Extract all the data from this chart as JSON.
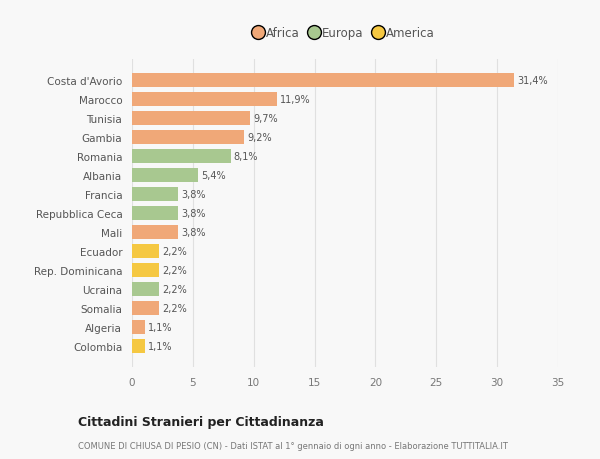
{
  "categories": [
    "Colombia",
    "Algeria",
    "Somalia",
    "Ucraina",
    "Rep. Dominicana",
    "Ecuador",
    "Mali",
    "Repubblica Ceca",
    "Francia",
    "Albania",
    "Romania",
    "Gambia",
    "Tunisia",
    "Marocco",
    "Costa d'Avorio"
  ],
  "values": [
    1.1,
    1.1,
    2.2,
    2.2,
    2.2,
    2.2,
    3.8,
    3.8,
    3.8,
    5.4,
    8.1,
    9.2,
    9.7,
    11.9,
    31.4
  ],
  "labels": [
    "1,1%",
    "1,1%",
    "2,2%",
    "2,2%",
    "2,2%",
    "2,2%",
    "3,8%",
    "3,8%",
    "3,8%",
    "5,4%",
    "8,1%",
    "9,2%",
    "9,7%",
    "11,9%",
    "31,4%"
  ],
  "colors": [
    "#f5c842",
    "#f0a878",
    "#f0a878",
    "#a8c890",
    "#f5c842",
    "#f5c842",
    "#f0a878",
    "#a8c890",
    "#a8c890",
    "#a8c890",
    "#a8c890",
    "#f0a878",
    "#f0a878",
    "#f0a878",
    "#f0a878"
  ],
  "legend_labels": [
    "Africa",
    "Europa",
    "America"
  ],
  "legend_colors": [
    "#f0a878",
    "#a8c890",
    "#f5c842"
  ],
  "title": "Cittadini Stranieri per Cittadinanza",
  "subtitle": "COMUNE DI CHIUSA DI PESIO (CN) - Dati ISTAT al 1° gennaio di ogni anno - Elaborazione TUTTITALIA.IT",
  "xlim": [
    0,
    35
  ],
  "xticks": [
    0,
    5,
    10,
    15,
    20,
    25,
    30,
    35
  ],
  "background_color": "#f8f8f8",
  "grid_color": "#e0e0e0",
  "bar_height": 0.75
}
